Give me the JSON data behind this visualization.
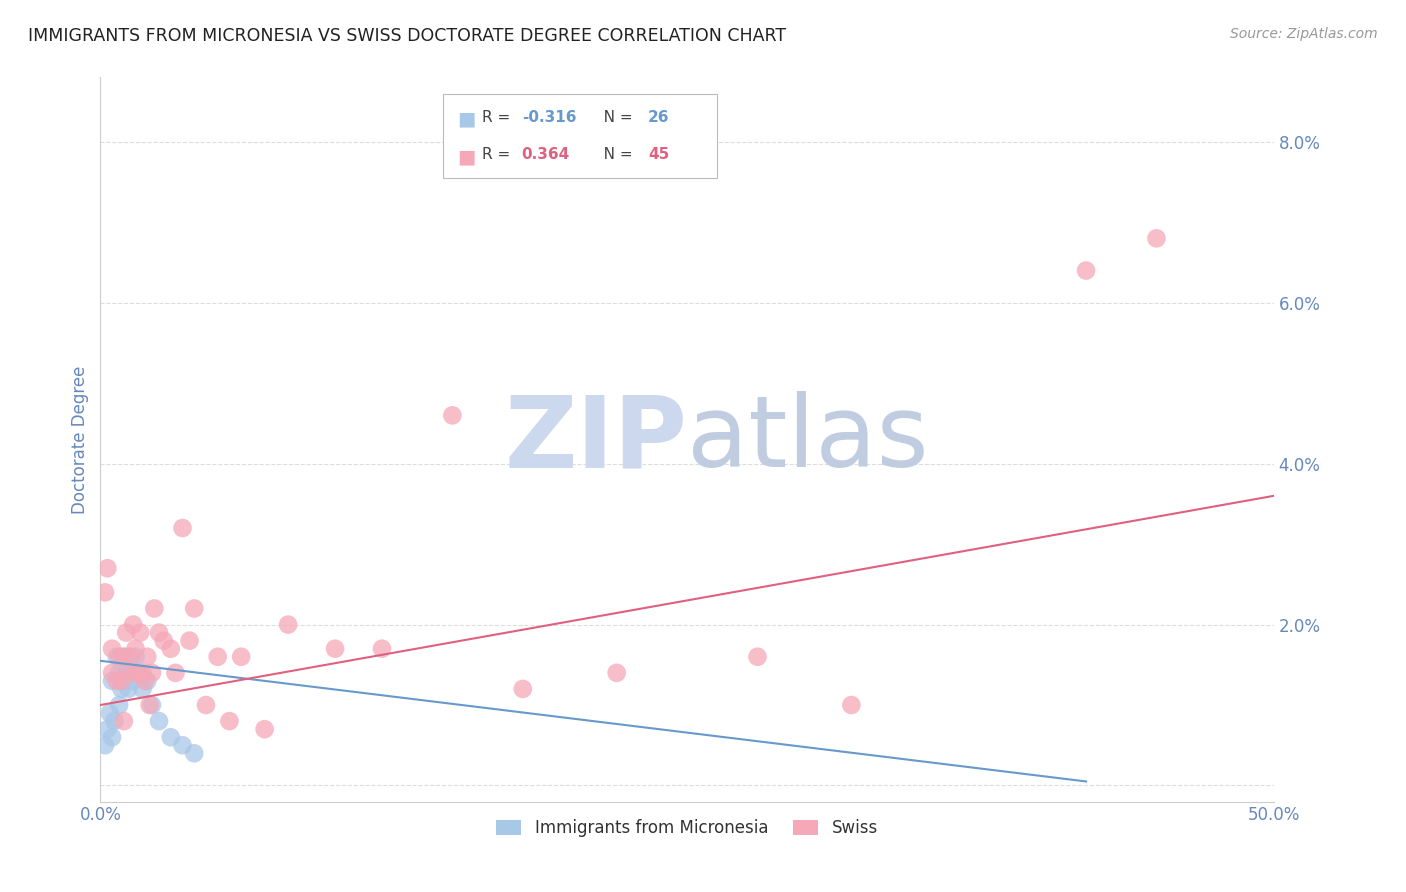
{
  "title": "IMMIGRANTS FROM MICRONESIA VS SWISS DOCTORATE DEGREE CORRELATION CHART",
  "source": "Source: ZipAtlas.com",
  "ylabel": "Doctorate Degree",
  "xlim": [
    0.0,
    0.5
  ],
  "ylim": [
    -0.002,
    0.088
  ],
  "yticks": [
    0.0,
    0.02,
    0.04,
    0.06,
    0.08
  ],
  "ytick_labels": [
    "",
    "2.0%",
    "4.0%",
    "6.0%",
    "8.0%"
  ],
  "xticks": [
    0.0,
    0.1,
    0.2,
    0.3,
    0.4,
    0.5
  ],
  "xtick_labels": [
    "0.0%",
    "",
    "",
    "",
    "",
    "50.0%"
  ],
  "blue_color": "#a8c8e8",
  "pink_color": "#f5a8b8",
  "blue_line_color": "#6699cc",
  "pink_line_color": "#e06080",
  "watermark_zip_color": "#c8d8f0",
  "watermark_atlas_color": "#c8d8e8",
  "axis_label_color": "#6688bb",
  "tick_color": "#6688bb",
  "grid_color": "#dddddd",
  "background_color": "#ffffff",
  "blue_scatter_x": [
    0.002,
    0.003,
    0.004,
    0.005,
    0.005,
    0.006,
    0.007,
    0.008,
    0.008,
    0.009,
    0.01,
    0.01,
    0.011,
    0.012,
    0.012,
    0.013,
    0.014,
    0.015,
    0.016,
    0.018,
    0.02,
    0.022,
    0.025,
    0.03,
    0.035,
    0.04
  ],
  "blue_scatter_y": [
    0.005,
    0.007,
    0.009,
    0.006,
    0.013,
    0.008,
    0.016,
    0.01,
    0.014,
    0.012,
    0.013,
    0.016,
    0.014,
    0.012,
    0.016,
    0.015,
    0.013,
    0.016,
    0.014,
    0.012,
    0.013,
    0.01,
    0.008,
    0.006,
    0.005,
    0.004
  ],
  "pink_scatter_x": [
    0.002,
    0.003,
    0.005,
    0.005,
    0.007,
    0.008,
    0.009,
    0.01,
    0.01,
    0.011,
    0.012,
    0.013,
    0.014,
    0.015,
    0.015,
    0.016,
    0.017,
    0.018,
    0.019,
    0.02,
    0.021,
    0.022,
    0.023,
    0.025,
    0.027,
    0.03,
    0.032,
    0.035,
    0.038,
    0.04,
    0.045,
    0.05,
    0.055,
    0.06,
    0.07,
    0.08,
    0.1,
    0.12,
    0.15,
    0.18,
    0.22,
    0.28,
    0.32,
    0.42,
    0.45
  ],
  "pink_scatter_y": [
    0.024,
    0.027,
    0.017,
    0.014,
    0.013,
    0.016,
    0.013,
    0.016,
    0.008,
    0.019,
    0.014,
    0.016,
    0.02,
    0.017,
    0.014,
    0.014,
    0.019,
    0.014,
    0.013,
    0.016,
    0.01,
    0.014,
    0.022,
    0.019,
    0.018,
    0.017,
    0.014,
    0.032,
    0.018,
    0.022,
    0.01,
    0.016,
    0.008,
    0.016,
    0.007,
    0.02,
    0.017,
    0.017,
    0.046,
    0.012,
    0.014,
    0.016,
    0.01,
    0.064,
    0.068
  ],
  "blue_line_x": [
    0.0,
    0.42
  ],
  "blue_line_y": [
    0.0155,
    0.0005
  ],
  "pink_line_x": [
    0.0,
    0.5
  ],
  "pink_line_y": [
    0.01,
    0.036
  ],
  "legend_R_blue": "-0.316",
  "legend_N_blue": "26",
  "legend_R_pink": "0.364",
  "legend_N_pink": "45",
  "legend_label_blue": "Immigrants from Micronesia",
  "legend_label_pink": "Swiss"
}
